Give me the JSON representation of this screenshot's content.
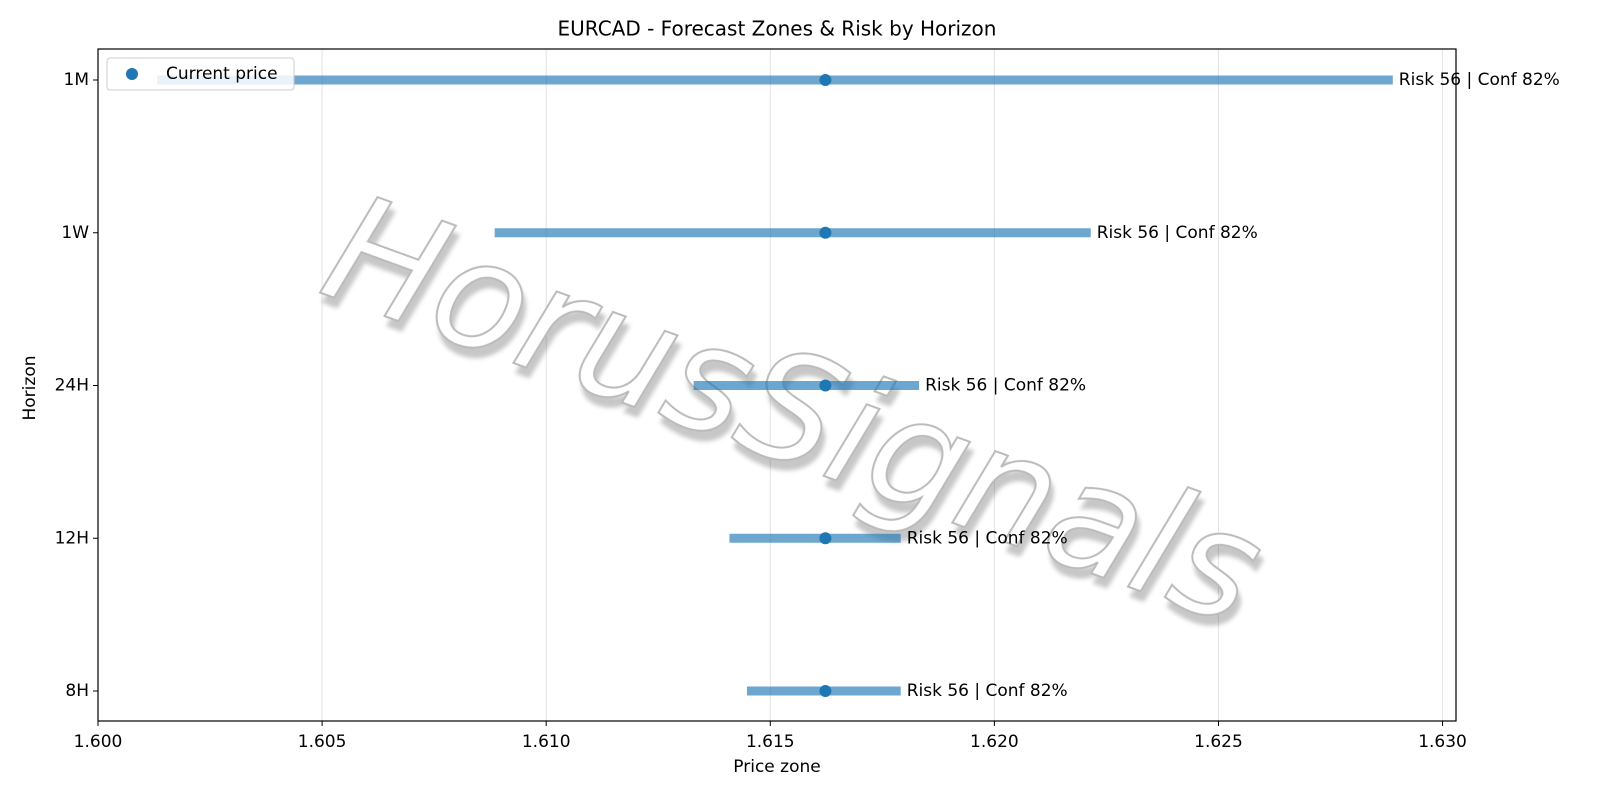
{
  "chart_data": {
    "type": "range",
    "title": "EURCAD - Forecast Zones & Risk by Horizon",
    "xlabel": "Price zone",
    "ylabel": "Horizon",
    "categories": [
      "8H",
      "12H",
      "24H",
      "1W",
      "1M"
    ],
    "low": [
      1.61448,
      1.61409,
      1.61329,
      1.60885,
      1.60132
    ],
    "high": [
      1.61791,
      1.61791,
      1.61832,
      1.62215,
      1.62889
    ],
    "color": "#1f77b4",
    "current": {
      "name": "Current price",
      "color": "#1f77b4",
      "values": [
        1.61623,
        1.61623,
        1.61623,
        1.61623,
        1.61623
      ]
    },
    "annotations": [
      "Risk 56 | Conf 82%",
      "Risk 56 | Conf 82%",
      "Risk 56 | Conf 82%",
      "Risk 56 | Conf 82%",
      "Risk 56 | Conf 82%"
    ],
    "xlim": [
      1.6,
      1.6303
    ],
    "xticks": [
      {
        "value": 1.6,
        "label": "1.600"
      },
      1.605,
      {
        "value": 1.61,
        "label": "1.610"
      },
      1.615,
      {
        "value": 1.62,
        "label": "1.620"
      },
      1.625,
      {
        "value": 1.63,
        "label": "1.630"
      }
    ],
    "grid": "x",
    "legend_loc": "upper left",
    "watermark": "HorusSignals"
  }
}
